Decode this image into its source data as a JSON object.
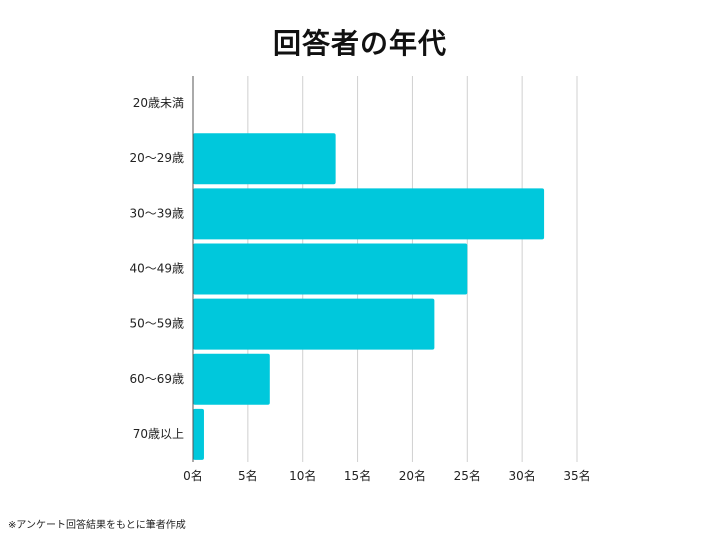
{
  "chart_data": {
    "type": "bar",
    "orientation": "horizontal",
    "title": "回答者の年代",
    "categories": [
      "20歳未満",
      "20～29歳",
      "30～39歳",
      "40～49歳",
      "50～59歳",
      "60～69歳",
      "70歳以上"
    ],
    "values": [
      0,
      13,
      32,
      25,
      22,
      7,
      1
    ],
    "xlim": [
      0,
      35
    ],
    "xticks": [
      0,
      5,
      10,
      15,
      20,
      25,
      30,
      35
    ],
    "xtick_labels": [
      "0名",
      "5名",
      "10名",
      "15名",
      "20名",
      "25名",
      "30名",
      "35名"
    ],
    "grid": true,
    "legend": "none",
    "bar_color": "#00C8DC",
    "grid_color": "#D0D0D0",
    "axis_color": "#555555"
  },
  "footnote": "※アンケート回答結果をもとに筆者作成"
}
